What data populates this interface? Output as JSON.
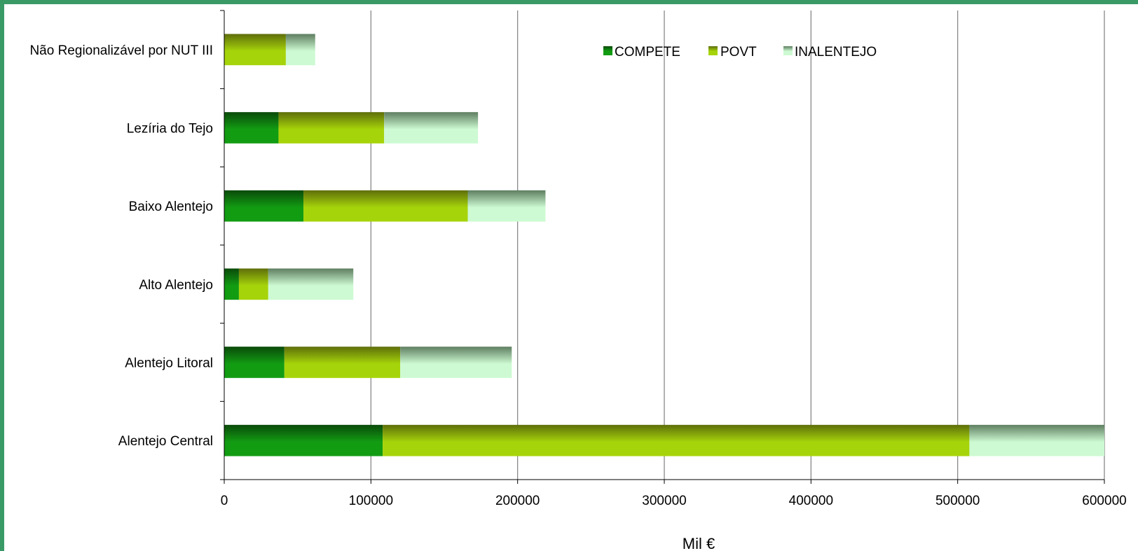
{
  "chart_data": {
    "type": "bar",
    "orientation": "horizontal",
    "stacked": true,
    "categories": [
      "Não Regionalizável por NUT III",
      "Lezíria do Tejo",
      "Baixo Alentejo",
      "Alto Alentejo",
      "Alentejo Litoral",
      "Alentejo Central"
    ],
    "series": [
      {
        "name": "COMPETE",
        "values": [
          0,
          37000,
          54000,
          10000,
          41000,
          108000
        ]
      },
      {
        "name": "POVT",
        "values": [
          42000,
          72000,
          112000,
          20000,
          79000,
          400000
        ]
      },
      {
        "name": "INALENTEJO",
        "values": [
          20000,
          64000,
          53000,
          58000,
          76000,
          92000
        ]
      }
    ],
    "xlabel": "Mil €",
    "xlim": [
      0,
      600000
    ],
    "xticks": [
      "0",
      "100000",
      "200000",
      "300000",
      "400000",
      "500000",
      "600000"
    ],
    "grid": "vertical",
    "legend_position": "top-center",
    "colors": {
      "COMPETE": {
        "top": "#0a4a0a",
        "bottom": "#129c12"
      },
      "POVT": {
        "top": "#5e6e0a",
        "bottom": "#a6d40a"
      },
      "INALENTEJO": {
        "top": "#5e7e60",
        "bottom": "#cdfad2"
      }
    }
  }
}
